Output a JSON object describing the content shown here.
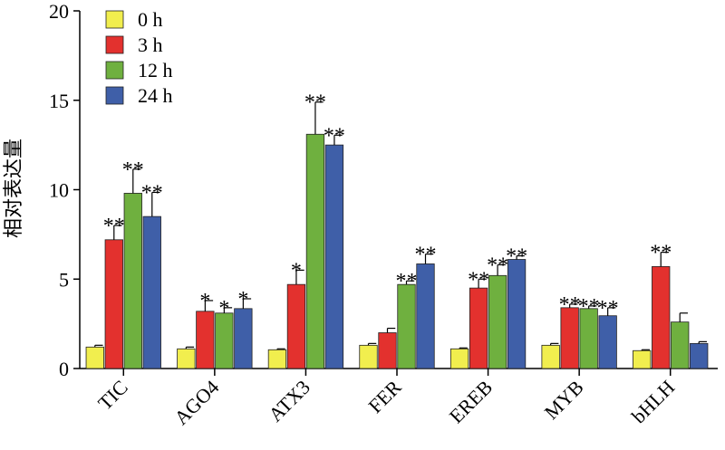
{
  "chart_data": {
    "type": "bar",
    "title": "",
    "xlabel": "",
    "ylabel": "相对表达量",
    "ylim": [
      0,
      20
    ],
    "yticks": [
      0,
      5,
      10,
      15,
      20
    ],
    "grid": false,
    "legend_position": "top-left",
    "categories": [
      "TIC",
      "AGO4",
      "ATX3",
      "FER",
      "EREB",
      "MYB",
      "bHLH"
    ],
    "series": [
      {
        "name": "0 h",
        "color": "#f1ee4e",
        "values": [
          1.2,
          1.1,
          1.05,
          1.3,
          1.1,
          1.3,
          1.0
        ],
        "errors": [
          0.1,
          0.1,
          0.05,
          0.1,
          0.05,
          0.1,
          0.05
        ],
        "sig": [
          "",
          "",
          "",
          "",
          "",
          "",
          ""
        ]
      },
      {
        "name": "3 h",
        "color": "#e3312e",
        "values": [
          7.2,
          3.2,
          4.7,
          2.0,
          4.5,
          3.4,
          5.7
        ],
        "errors": [
          0.8,
          0.6,
          0.8,
          0.25,
          0.5,
          0.2,
          0.8
        ],
        "sig": [
          "**",
          "*",
          "*",
          "",
          "**",
          "**",
          "**"
        ]
      },
      {
        "name": "12 h",
        "color": "#6fb03f",
        "values": [
          9.8,
          3.1,
          13.1,
          4.7,
          5.2,
          3.35,
          2.6
        ],
        "errors": [
          1.35,
          0.3,
          1.8,
          0.2,
          0.6,
          0.15,
          0.5
        ],
        "sig": [
          "**",
          "*",
          "**",
          "**",
          "**",
          "**",
          ""
        ]
      },
      {
        "name": "24 h",
        "color": "#3f5fa8",
        "values": [
          8.5,
          3.35,
          12.5,
          5.85,
          6.1,
          2.95,
          1.4
        ],
        "errors": [
          1.35,
          0.55,
          0.55,
          0.55,
          0.2,
          0.45,
          0.1
        ],
        "sig": [
          "**",
          "*",
          "**",
          "**",
          "**",
          "**",
          ""
        ]
      }
    ]
  }
}
